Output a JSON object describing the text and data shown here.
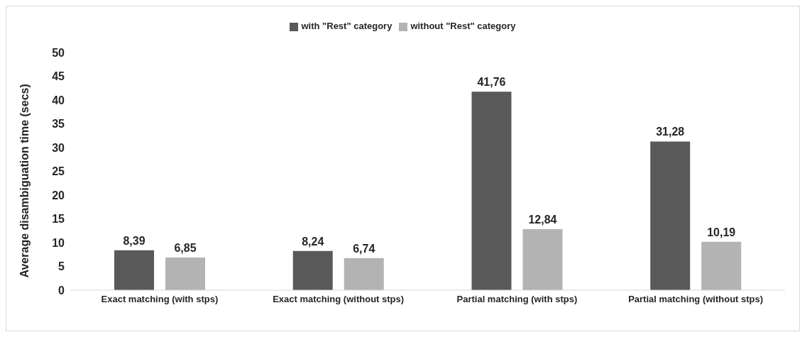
{
  "chart_data": {
    "type": "bar",
    "ylabel": "Average disambiguation time (secs)",
    "categories": [
      "Exact matching (with stps)",
      "Exact matching (without stps)",
      "Partial matching (with stps)",
      "Partial matching (without stps)"
    ],
    "series": [
      {
        "name": "with \"Rest\" category",
        "color": "#595959",
        "values": [
          8.39,
          8.24,
          41.76,
          31.28
        ],
        "value_labels": [
          "8,39",
          "8,24",
          "41,76",
          "31,28"
        ]
      },
      {
        "name": "without \"Rest\" category",
        "color": "#b3b3b3",
        "values": [
          6.85,
          6.74,
          12.84,
          10.19
        ],
        "value_labels": [
          "6,85",
          "6,74",
          "12,84",
          "10,19"
        ]
      }
    ],
    "ylim": [
      0,
      50
    ],
    "yticks": [
      0,
      5,
      10,
      15,
      20,
      25,
      30,
      35,
      40,
      45,
      50
    ],
    "grid": false,
    "legend": "top"
  }
}
